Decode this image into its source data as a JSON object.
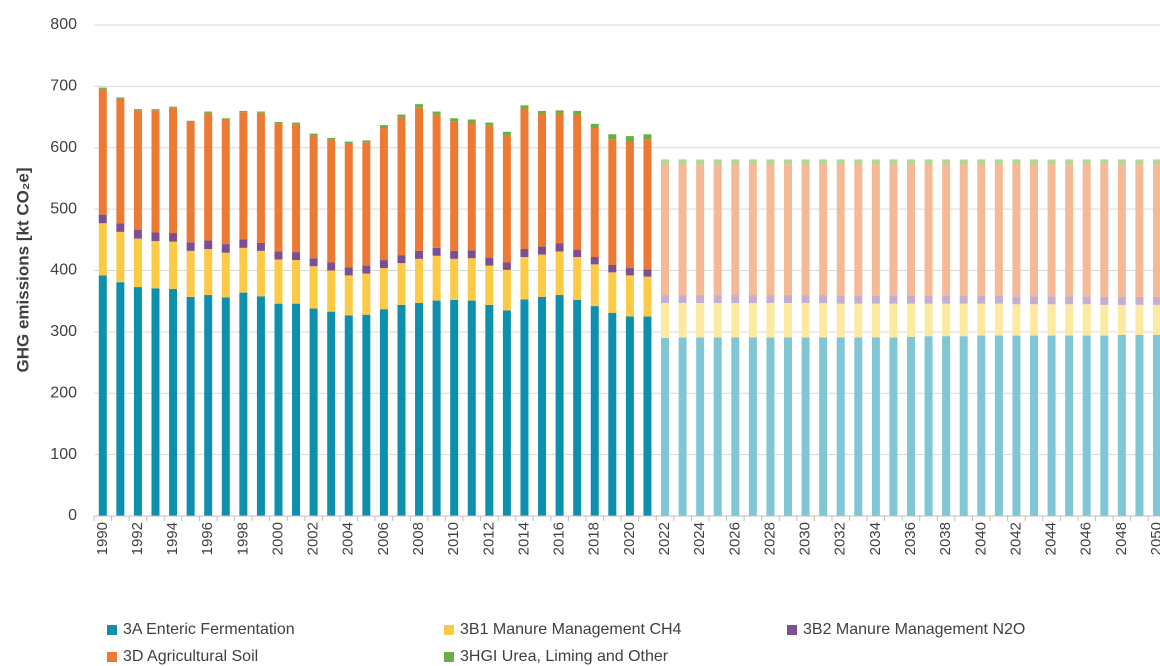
{
  "chart_data": {
    "type": "stacked_bar",
    "ylabel": "GHG emissions [kt CO₂e]",
    "categories": [
      "1990",
      null,
      "1992",
      null,
      "1994",
      null,
      "1996",
      null,
      "1998",
      null,
      "2000",
      null,
      "2002",
      null,
      "2004",
      null,
      "2006",
      null,
      "2008",
      null,
      "2010",
      null,
      "2012",
      null,
      "2014",
      null,
      "2016",
      null,
      "2018",
      null,
      "2020",
      null,
      "2022",
      null,
      "2024",
      null,
      "2026",
      null,
      "2028",
      null,
      "2030",
      null,
      "2032",
      null,
      "2034",
      null,
      "2036",
      null,
      "2038",
      null,
      "2040",
      null,
      "2042",
      null,
      "2044",
      null,
      "2046",
      null,
      "2048",
      null,
      "2050"
    ],
    "projection_start": "2022",
    "ylim": [
      0,
      800
    ],
    "yticks": [
      0,
      100,
      200,
      300,
      400,
      500,
      600,
      700,
      800
    ],
    "grid": true,
    "legend": "bottom",
    "series": [
      {
        "name": "3A Enteric Fermentation",
        "color": "#0e8fae",
        "projection_color": "#80c6d4",
        "values": [
          392,
          381,
          373,
          371,
          370,
          357,
          360,
          356,
          364,
          358,
          346,
          346,
          338,
          333,
          327,
          328,
          337,
          344,
          347,
          351,
          352,
          351,
          344,
          335,
          353,
          357,
          360,
          352,
          342,
          331,
          325,
          325,
          290,
          291,
          291,
          291,
          291,
          291,
          291,
          291,
          291,
          291,
          291,
          291,
          291,
          291,
          292,
          293,
          293,
          293,
          294,
          294,
          294,
          294,
          294,
          294,
          294,
          294,
          295,
          295,
          295
        ]
      },
      {
        "name": "3B1 Manure Management CH4",
        "color": "#fcca46",
        "projection_color": "#fde99f",
        "values": [
          85,
          82,
          79,
          77,
          77,
          75,
          75,
          73,
          73,
          74,
          72,
          71,
          69,
          67,
          65,
          67,
          67,
          68,
          72,
          73,
          67,
          69,
          64,
          66,
          69,
          69,
          71,
          70,
          68,
          66,
          67,
          65,
          57,
          56,
          56,
          56,
          56,
          56,
          56,
          56,
          56,
          56,
          55,
          55,
          55,
          55,
          54,
          53,
          53,
          53,
          52,
          52,
          51,
          51,
          51,
          51,
          51,
          50,
          49,
          49,
          49
        ]
      },
      {
        "name": "3B2 Manure Management N2O",
        "color": "#7b4f91",
        "projection_color": "#c6aed1",
        "values": [
          14,
          14,
          14,
          14,
          14,
          14,
          14,
          14,
          14,
          13,
          13,
          13,
          13,
          13,
          13,
          13,
          13,
          13,
          13,
          13,
          13,
          13,
          13,
          12,
          13,
          13,
          13,
          12,
          12,
          12,
          12,
          12,
          13,
          13,
          13,
          13,
          13,
          13,
          13,
          13,
          13,
          13,
          13,
          13,
          13,
          13,
          13,
          13,
          13,
          13,
          13,
          13,
          13,
          13,
          13,
          13,
          13,
          13,
          13,
          13,
          13
        ]
      },
      {
        "name": "3D Agricultural Soil",
        "color": "#ec7a34",
        "projection_color": "#f5b996",
        "values": [
          205,
          203,
          195,
          199,
          204,
          196,
          208,
          203,
          207,
          212,
          209,
          208,
          200,
          200,
          202,
          201,
          215,
          224,
          234,
          217,
          211,
          208,
          215,
          208,
          229,
          216,
          212,
          220,
          211,
          205,
          207,
          212,
          213,
          213,
          213,
          213,
          213,
          213,
          213,
          213,
          213,
          213,
          214,
          214,
          214,
          214,
          214,
          214,
          214,
          214,
          214,
          214,
          215,
          215,
          215,
          215,
          215,
          216,
          216,
          216,
          216
        ]
      },
      {
        "name": "3HGI Urea, Liming and Other",
        "color": "#6aaf44",
        "projection_color": "#b0d79b",
        "values": [
          2,
          2,
          2,
          2,
          2,
          2,
          2,
          2,
          2,
          2,
          2,
          3,
          3,
          3,
          3,
          3,
          5,
          5,
          5,
          5,
          5,
          5,
          5,
          5,
          5,
          5,
          5,
          6,
          6,
          8,
          8,
          8,
          8,
          8,
          8,
          8,
          8,
          8,
          8,
          8,
          8,
          8,
          8,
          8,
          8,
          8,
          8,
          8,
          8,
          8,
          8,
          8,
          8,
          8,
          8,
          8,
          8,
          8,
          8,
          8,
          8
        ]
      }
    ]
  }
}
